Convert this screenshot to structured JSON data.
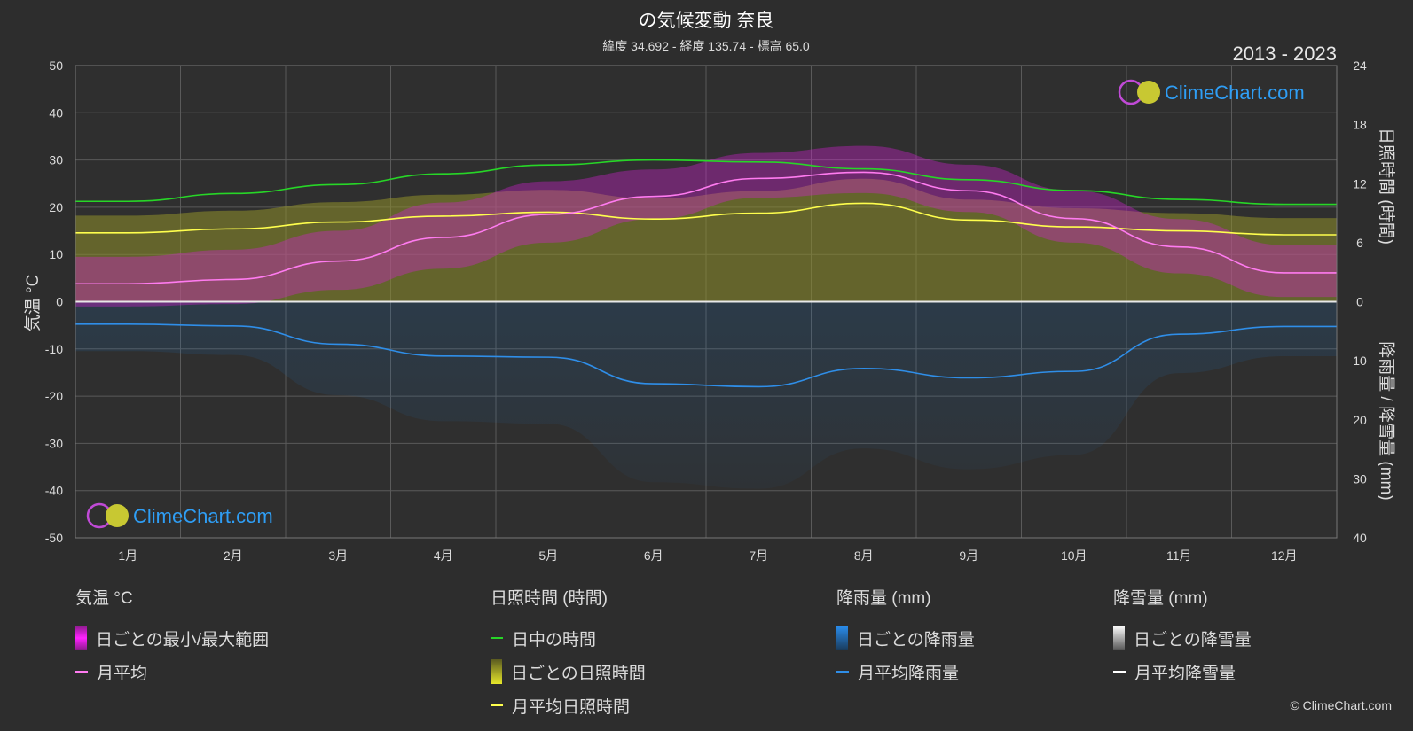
{
  "header": {
    "title": "の気候変動 奈良",
    "subtitle": "緯度 34.692 - 経度 135.74 - 標高 65.0",
    "period": "2013 - 2023"
  },
  "watermark": "ClimeChart.com",
  "copyright": "© ClimeChart.com",
  "colors": {
    "background": "#2d2d2d",
    "temp_range": "#d21fd2",
    "temp_avg": "#ff7bf0",
    "daylight": "#27d627",
    "sunshine_daily": "#8f8f2a",
    "sunshine_avg": "#ffff4d",
    "rain_daily": "#1f6db5",
    "rain_avg": "#2f8ee8",
    "snow": "#ffffff"
  },
  "legend": {
    "temperature": {
      "title": "気温 °C",
      "range": "日ごとの最小/最大範囲",
      "avg": "月平均"
    },
    "sunshine": {
      "title": "日照時間 (時間)",
      "daylight": "日中の時間",
      "daily": "日ごとの日照時間",
      "avg": "月平均日照時間"
    },
    "rain": {
      "title": "降雨量 (mm)",
      "daily": "日ごとの降雨量",
      "avg": "月平均降雨量"
    },
    "snow": {
      "title": "降雪量 (mm)",
      "daily": "日ごとの降雪量",
      "avg": "月平均降雪量"
    }
  },
  "chart_data": {
    "type": "line",
    "categories": [
      "1月",
      "2月",
      "3月",
      "4月",
      "5月",
      "6月",
      "7月",
      "8月",
      "9月",
      "10月",
      "11月",
      "12月"
    ],
    "y_left": {
      "label": "気温 °C",
      "range": [
        -50,
        50
      ],
      "ticks": [
        50,
        40,
        30,
        20,
        10,
        0,
        -10,
        -20,
        -30,
        -40,
        -50
      ]
    },
    "y_right_top": {
      "label": "日照時間 (時間)",
      "range": [
        0,
        24
      ],
      "ticks": [
        24,
        18,
        12,
        6,
        0
      ]
    },
    "y_right_bottom": {
      "label": "降雨量 / 降雪量 (mm)",
      "range": [
        0,
        40
      ],
      "ticks": [
        0,
        10,
        20,
        30,
        40
      ]
    },
    "grid": true,
    "series": [
      {
        "name": "月平均",
        "axis": "temperature",
        "values": [
          3.8,
          4.7,
          8.6,
          13.6,
          18.5,
          22.3,
          26.1,
          27.4,
          23.5,
          17.6,
          11.6,
          6.1
        ]
      },
      {
        "name": "日ごとの最小/最大範囲 (min)",
        "axis": "temperature",
        "values": [
          -1.0,
          -0.5,
          2.5,
          7.0,
          12.5,
          17.5,
          22.0,
          23.0,
          19.0,
          12.5,
          6.0,
          1.0
        ]
      },
      {
        "name": "日ごとの最小/最大範囲 (max)",
        "axis": "temperature",
        "values": [
          9.5,
          11.0,
          15.0,
          21.0,
          25.5,
          28.0,
          31.5,
          33.0,
          29.0,
          23.5,
          17.5,
          12.0
        ]
      },
      {
        "name": "日中の時間",
        "axis": "hours",
        "values": [
          10.2,
          11.0,
          11.9,
          13.0,
          13.9,
          14.4,
          14.2,
          13.5,
          12.4,
          11.3,
          10.4,
          9.9
        ]
      },
      {
        "name": "月平均日照時間",
        "axis": "hours",
        "values": [
          7.0,
          7.4,
          8.1,
          8.7,
          9.1,
          8.4,
          9.0,
          10.0,
          8.3,
          7.6,
          7.2,
          6.8
        ]
      },
      {
        "name": "月平均降雨量",
        "axis": "precip",
        "values": [
          3.8,
          4.1,
          7.2,
          9.2,
          9.4,
          13.9,
          14.4,
          11.3,
          12.9,
          11.8,
          5.5,
          4.2
        ]
      },
      {
        "name": "月平均降雪量",
        "axis": "precip",
        "values": [
          0,
          0,
          0,
          0,
          0,
          0,
          0,
          0,
          0,
          0,
          0,
          0
        ]
      }
    ]
  }
}
